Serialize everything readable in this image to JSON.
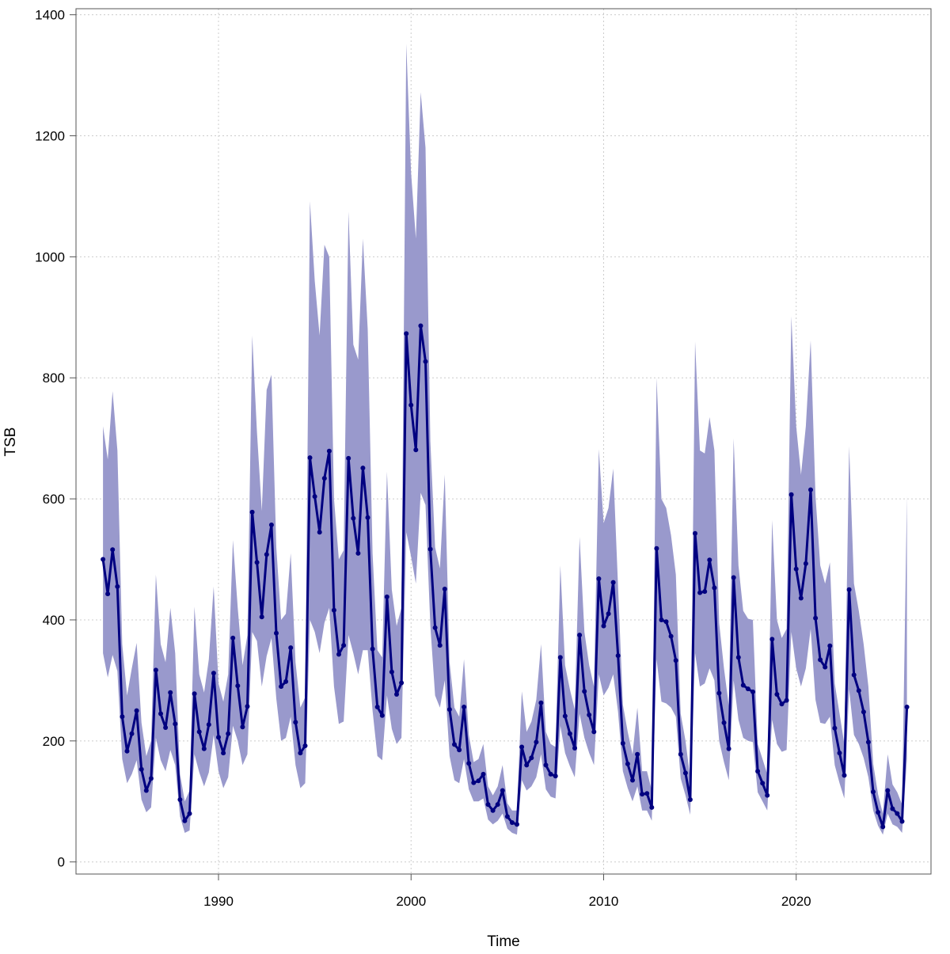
{
  "chart_data": {
    "type": "line",
    "title": "",
    "xlabel": "Time",
    "ylabel": "TSB",
    "xlim": [
      1982.6,
      2027.0
    ],
    "ylim": [
      -20,
      1410
    ],
    "x_ticks": [
      1990,
      2000,
      2010,
      2020
    ],
    "x_tick_labels": [
      "1990",
      "2000",
      "2010",
      "2020"
    ],
    "y_ticks": [
      0,
      200,
      400,
      600,
      800,
      1000,
      1200,
      1400
    ],
    "y_tick_labels": [
      "0",
      "200",
      "400",
      "600",
      "800",
      "1000",
      "1200",
      "1400"
    ],
    "grid": true,
    "legend": "none",
    "colors": {
      "line": "#000080",
      "band": "#9999cc",
      "grid": "#cccccc",
      "axis": "#555555"
    },
    "series": [
      {
        "x": [
          1984.0,
          1984.25,
          1984.5,
          1984.75,
          1985.0,
          1985.25,
          1985.5,
          1985.75,
          1986.0,
          1986.25,
          1986.5,
          1986.75,
          1987.0,
          1987.25,
          1987.5,
          1987.75,
          1988.0,
          1988.25,
          1988.5,
          1988.75,
          1989.0,
          1989.25,
          1989.5,
          1989.75,
          1990.0,
          1990.25,
          1990.5,
          1990.75,
          1991.0,
          1991.25,
          1991.5,
          1991.75,
          1992.0,
          1992.25,
          1992.5,
          1992.75,
          1993.0,
          1993.25,
          1993.5,
          1993.75,
          1994.0,
          1994.25,
          1994.5,
          1994.75,
          1995.0,
          1995.25,
          1995.5,
          1995.75,
          1996.0,
          1996.25,
          1996.5,
          1996.75,
          1997.0,
          1997.25,
          1997.5,
          1997.75,
          1998.0,
          1998.25,
          1998.5,
          1998.75,
          1999.0,
          1999.25,
          1999.5,
          1999.75,
          2000.0,
          2000.25,
          2000.5,
          2000.75,
          2001.0,
          2001.25,
          2001.5,
          2001.75,
          2002.0,
          2002.25,
          2002.5,
          2002.75,
          2003.0,
          2003.25,
          2003.5,
          2003.75,
          2004.0,
          2004.25,
          2004.5,
          2004.75,
          2005.0,
          2005.25,
          2005.5,
          2005.75,
          2006.0,
          2006.25,
          2006.5,
          2006.75,
          2007.0,
          2007.25,
          2007.5,
          2007.75,
          2008.0,
          2008.25,
          2008.5,
          2008.75,
          2009.0,
          2009.25,
          2009.5,
          2009.75,
          2010.0,
          2010.25,
          2010.5,
          2010.75,
          2011.0,
          2011.25,
          2011.5,
          2011.75,
          2012.0,
          2012.25,
          2012.5,
          2012.75,
          2013.0,
          2013.25,
          2013.5,
          2013.75,
          2014.0,
          2014.25,
          2014.5,
          2014.75,
          2015.0,
          2015.25,
          2015.5,
          2015.75,
          2016.0,
          2016.25,
          2016.5,
          2016.75,
          2017.0,
          2017.25,
          2017.5,
          2017.75,
          2018.0,
          2018.25,
          2018.5,
          2018.75,
          2019.0,
          2019.25,
          2019.5,
          2019.75,
          2020.0,
          2020.25,
          2020.5,
          2020.75,
          2021.0,
          2021.25,
          2021.5,
          2021.75,
          2022.0,
          2022.25,
          2022.5,
          2022.75,
          2023.0,
          2023.25,
          2023.5,
          2023.75,
          2024.0,
          2024.25,
          2024.5,
          2024.75,
          2025.0,
          2025.25,
          2025.5,
          2025.75
        ],
        "values": [
          500,
          443,
          516,
          455,
          240,
          183,
          212,
          250,
          153,
          118,
          138,
          317,
          245,
          222,
          280,
          228,
          103,
          68,
          80,
          278,
          215,
          187,
          227,
          312,
          206,
          180,
          212,
          370,
          291,
          223,
          257,
          578,
          495,
          405,
          508,
          557,
          378,
          290,
          298,
          354,
          231,
          180,
          192,
          668,
          604,
          545,
          634,
          679,
          416,
          343,
          358,
          667,
          568,
          510,
          651,
          569,
          352,
          256,
          242,
          438,
          314,
          277,
          296,
          873,
          755,
          681,
          886,
          827,
          517,
          387,
          358,
          451,
          252,
          194,
          185,
          256,
          163,
          131,
          134,
          145,
          95,
          85,
          95,
          118,
          75,
          65,
          62,
          190,
          160,
          172,
          198,
          263,
          160,
          145,
          142,
          338,
          241,
          212,
          188,
          375,
          282,
          243,
          215,
          468,
          390,
          410,
          462,
          341,
          196,
          162,
          135,
          178,
          112,
          113,
          90,
          518,
          400,
          397,
          373,
          333,
          178,
          147,
          103,
          543,
          445,
          447,
          499,
          453,
          279,
          230,
          187,
          470,
          338,
          292,
          286,
          281,
          150,
          130,
          110,
          368,
          277,
          261,
          267,
          607,
          484,
          436,
          493,
          615,
          403,
          334,
          322,
          357,
          221,
          180,
          143,
          450,
          309,
          283,
          248,
          198,
          116,
          82,
          58,
          118,
          88,
          80,
          67,
          256
        ],
        "lower": [
          345,
          305,
          342,
          315,
          170,
          130,
          145,
          168,
          103,
          82,
          90,
          205,
          168,
          150,
          185,
          160,
          75,
          48,
          52,
          178,
          148,
          125,
          148,
          210,
          150,
          122,
          140,
          225,
          200,
          160,
          178,
          380,
          365,
          290,
          340,
          370,
          270,
          200,
          205,
          240,
          160,
          122,
          130,
          400,
          380,
          345,
          395,
          420,
          290,
          228,
          232,
          375,
          345,
          310,
          350,
          350,
          250,
          175,
          168,
          275,
          220,
          195,
          205,
          545,
          505,
          460,
          610,
          590,
          390,
          275,
          255,
          300,
          175,
          135,
          130,
          170,
          120,
          100,
          100,
          105,
          70,
          62,
          68,
          80,
          55,
          48,
          45,
          135,
          118,
          125,
          140,
          178,
          120,
          108,
          105,
          225,
          180,
          158,
          140,
          245,
          205,
          180,
          160,
          310,
          275,
          288,
          310,
          248,
          150,
          122,
          100,
          125,
          85,
          85,
          68,
          335,
          265,
          262,
          255,
          240,
          138,
          110,
          78,
          345,
          290,
          295,
          320,
          300,
          200,
          165,
          135,
          300,
          235,
          205,
          200,
          198,
          115,
          100,
          85,
          235,
          195,
          182,
          185,
          380,
          320,
          290,
          320,
          385,
          268,
          230,
          228,
          240,
          160,
          130,
          105,
          285,
          210,
          195,
          172,
          140,
          85,
          60,
          45,
          80,
          62,
          58,
          48,
          170
        ],
        "upper": [
          720,
          665,
          778,
          680,
          360,
          275,
          320,
          362,
          230,
          175,
          200,
          475,
          360,
          330,
          420,
          345,
          145,
          100,
          118,
          422,
          310,
          280,
          335,
          455,
          295,
          265,
          310,
          532,
          420,
          325,
          375,
          870,
          710,
          580,
          780,
          805,
          520,
          400,
          410,
          510,
          330,
          255,
          272,
          1092,
          960,
          870,
          1020,
          1000,
          600,
          500,
          515,
          1075,
          855,
          830,
          1030,
          880,
          510,
          350,
          338,
          645,
          450,
          390,
          420,
          1352,
          1140,
          1030,
          1272,
          1180,
          695,
          520,
          485,
          640,
          330,
          255,
          240,
          335,
          210,
          165,
          170,
          195,
          125,
          110,
          125,
          160,
          97,
          85,
          85,
          282,
          215,
          232,
          268,
          360,
          215,
          195,
          190,
          490,
          325,
          285,
          252,
          537,
          380,
          325,
          290,
          682,
          560,
          585,
          650,
          455,
          260,
          215,
          178,
          255,
          150,
          150,
          118,
          800,
          600,
          585,
          540,
          475,
          245,
          200,
          138,
          860,
          680,
          675,
          735,
          680,
          395,
          320,
          258,
          700,
          490,
          415,
          402,
          400,
          195,
          170,
          145,
          565,
          400,
          370,
          385,
          902,
          720,
          640,
          720,
          862,
          605,
          490,
          460,
          495,
          295,
          245,
          195,
          687,
          460,
          415,
          360,
          290,
          162,
          112,
          80,
          178,
          128,
          115,
          95,
          605
        ]
      }
    ]
  }
}
